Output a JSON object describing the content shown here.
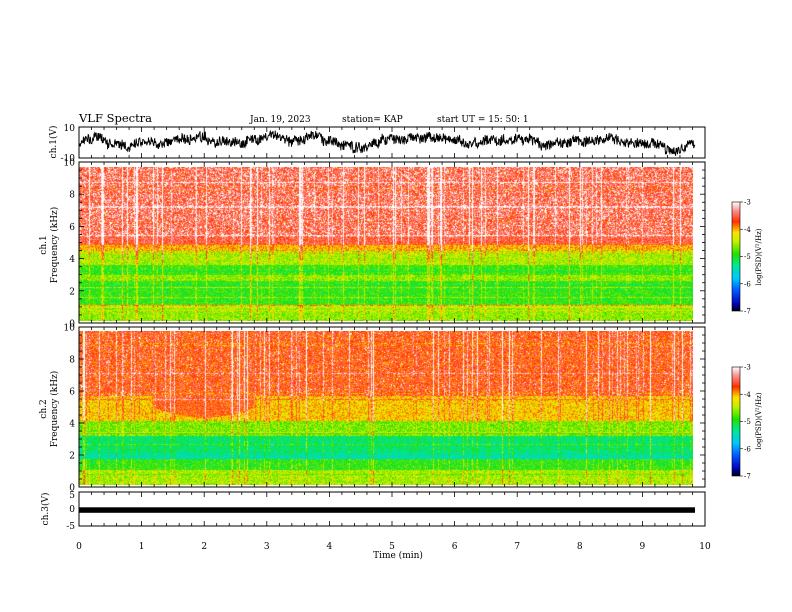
{
  "header": {
    "title": "VLF Spectra",
    "date": "Jan. 19, 2023",
    "station": "station= KAP",
    "start": "start  UT  =   15: 50: 1"
  },
  "chart_data": [
    {
      "id": "ch1-waveform",
      "type": "line",
      "ylabel": "ch.1(V)",
      "ylim": [
        -10,
        10
      ],
      "yticks": [
        "10",
        "-10"
      ],
      "xlim": [
        0,
        10
      ]
    },
    {
      "id": "ch1-spectrogram",
      "type": "heatmap",
      "ylabel_line1": "ch.1",
      "ylabel_line2": "Frequency  (kHz)",
      "ylim": [
        0,
        10
      ],
      "yticks": [
        "0",
        "2",
        "4",
        "6",
        "8",
        "10"
      ],
      "xlim": [
        0,
        10
      ],
      "colorbar": {
        "label": "log(PSD)(V²/Hz)",
        "range": [
          -7,
          -3
        ],
        "ticks": [
          "-3",
          "-4",
          "-5",
          "-6",
          "-7"
        ]
      }
    },
    {
      "id": "ch2-spectrogram",
      "type": "heatmap",
      "ylabel_line1": "ch.2",
      "ylabel_line2": "Frequency  (kHz)",
      "ylim": [
        0,
        10
      ],
      "yticks": [
        "0",
        "2",
        "4",
        "6",
        "8",
        "10"
      ],
      "xlim": [
        0,
        10
      ],
      "colorbar": {
        "label": "log(PSD)(V²/Hz)",
        "range": [
          -7,
          -3
        ],
        "ticks": [
          "-3",
          "-4",
          "-5",
          "-6",
          "-7"
        ]
      }
    },
    {
      "id": "ch3-waveform",
      "type": "line",
      "ylabel": "ch.3(V)",
      "ylim": [
        -5,
        5
      ],
      "yticks": [
        "5",
        "0",
        "-5"
      ],
      "level": -0.3,
      "xlim": [
        0,
        10
      ]
    }
  ],
  "xaxis": {
    "label": "Time  (min)",
    "ticks": [
      "0",
      "1",
      "2",
      "3",
      "4",
      "5",
      "6",
      "7",
      "8",
      "9",
      "10"
    ],
    "data_end": 9.84
  }
}
